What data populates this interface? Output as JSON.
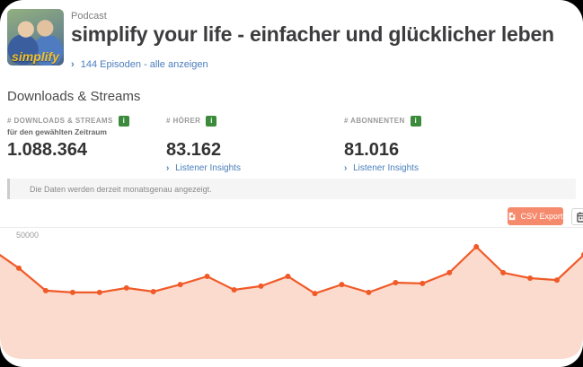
{
  "header": {
    "kicker": "Podcast",
    "title": "simplify your life - einfacher und glücklicher leben",
    "episodes_link": "144 Episoden - alle anzeigen",
    "cover_logo_text": "simplify"
  },
  "section": {
    "heading": "Downloads & Streams"
  },
  "stats": [
    {
      "label": "# DOWNLOADS & STREAMS",
      "sublabel": "für den gewählten Zeitraum",
      "value": "1.088.364"
    },
    {
      "label": "# HÖRER",
      "value": "83.162",
      "link": "Listener Insights"
    },
    {
      "label": "# ABONNENTEN",
      "value": "81.016",
      "link": "Listener Insights"
    }
  ],
  "notice": "Die Daten werden derzeit monatsgenau angezeigt.",
  "toolbar": {
    "csv_export_label": "CSV Export"
  },
  "chart_data": {
    "type": "area",
    "title": "",
    "xlabel": "",
    "ylabel": "",
    "x": "monthly data points (no visible x-axis labels)",
    "values": [
      41500,
      34400,
      25900,
      25200,
      25200,
      26900,
      25500,
      28200,
      31300,
      26200,
      27600,
      31300,
      24800,
      28200,
      25200,
      28900,
      28600,
      32700,
      42500,
      32700,
      30600,
      29900,
      39500
    ],
    "ylim": [
      0,
      55000
    ],
    "ytick_labels": [
      "50000"
    ],
    "grid": "single horizontal gridline at 50000",
    "legend": "none",
    "markers": true,
    "line_color": "#f05a28",
    "fill_color": "#fbdbce"
  },
  "colors": {
    "accent_orange": "#f58a6d",
    "chart_line": "#f05a28",
    "chart_fill": "#fbdbce",
    "link_blue": "#4a7ebb",
    "badge_green": "#3c8a3c"
  }
}
